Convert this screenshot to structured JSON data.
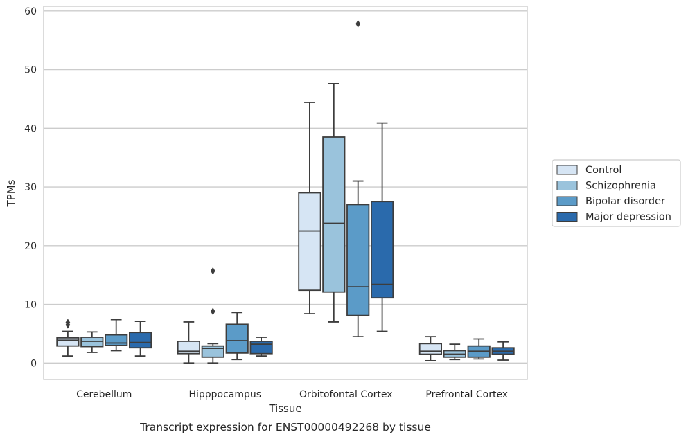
{
  "chart_data": {
    "type": "boxplot",
    "caption": "Transcript expression for ENST00000492268 by tissue",
    "xlabel": "Tissue",
    "ylabel": "TPMs",
    "ylim": [
      -2.8,
      60.8
    ],
    "yticks": [
      0,
      10,
      20,
      30,
      40,
      50,
      60
    ],
    "grid": "horizontal",
    "legend_position": "right-center",
    "categories": [
      "Cerebellum",
      "Hipppocampus",
      "Orbitofontal Cortex",
      "Prefrontal Cortex"
    ],
    "series": [
      {
        "name": "Control",
        "color": "#d6e5f4",
        "boxes": [
          {
            "whislo": 1.2,
            "q1": 2.9,
            "med": 3.9,
            "q3": 4.3,
            "whishi": 5.4,
            "fliers": [
              6.5,
              6.9
            ]
          },
          {
            "whislo": 0.0,
            "q1": 1.6,
            "med": 2.0,
            "q3": 3.7,
            "whishi": 7.0,
            "fliers": []
          },
          {
            "whislo": 8.4,
            "q1": 12.4,
            "med": 22.5,
            "q3": 29.0,
            "whishi": 44.4,
            "fliers": []
          },
          {
            "whislo": 0.4,
            "q1": 1.5,
            "med": 2.0,
            "q3": 3.3,
            "whishi": 4.5,
            "fliers": []
          }
        ]
      },
      {
        "name": "Schizophrenia",
        "color": "#9ac3dc",
        "boxes": [
          {
            "whislo": 1.8,
            "q1": 2.8,
            "med": 3.7,
            "q3": 4.4,
            "whishi": 5.3,
            "fliers": []
          },
          {
            "whislo": 0.0,
            "q1": 1.0,
            "med": 2.5,
            "q3": 2.9,
            "whishi": 3.3,
            "fliers": [
              8.8,
              15.7
            ]
          },
          {
            "whislo": 7.0,
            "q1": 12.1,
            "med": 23.8,
            "q3": 38.5,
            "whishi": 47.6,
            "fliers": []
          },
          {
            "whislo": 0.6,
            "q1": 1.0,
            "med": 1.5,
            "q3": 2.1,
            "whishi": 3.2,
            "fliers": []
          }
        ]
      },
      {
        "name": "Bipolar disorder",
        "color": "#5b9bc8",
        "boxes": [
          {
            "whislo": 2.1,
            "q1": 3.0,
            "med": 3.4,
            "q3": 4.8,
            "whishi": 7.4,
            "fliers": []
          },
          {
            "whislo": 0.6,
            "q1": 1.7,
            "med": 3.8,
            "q3": 6.6,
            "whishi": 8.6,
            "fliers": []
          },
          {
            "whislo": 4.5,
            "q1": 8.1,
            "med": 13.0,
            "q3": 27.0,
            "whishi": 31.0,
            "fliers": [
              57.8
            ]
          },
          {
            "whislo": 0.7,
            "q1": 1.0,
            "med": 2.0,
            "q3": 2.9,
            "whishi": 4.1,
            "fliers": []
          }
        ]
      },
      {
        "name": "Major depression",
        "color": "#2a6aac",
        "boxes": [
          {
            "whislo": 1.2,
            "q1": 2.6,
            "med": 3.5,
            "q3": 5.2,
            "whishi": 7.1,
            "fliers": []
          },
          {
            "whislo": 1.2,
            "q1": 1.6,
            "med": 3.2,
            "q3": 3.7,
            "whishi": 4.4,
            "fliers": []
          },
          {
            "whislo": 5.4,
            "q1": 11.1,
            "med": 13.4,
            "q3": 27.5,
            "whishi": 40.9,
            "fliers": []
          },
          {
            "whislo": 0.5,
            "q1": 1.5,
            "med": 2.0,
            "q3": 2.6,
            "whishi": 3.6,
            "fliers": []
          }
        ]
      }
    ]
  },
  "style": {
    "grid_color": "#cccccc",
    "frame_color": "#cccccc",
    "line_color": "#3d3d3d"
  }
}
